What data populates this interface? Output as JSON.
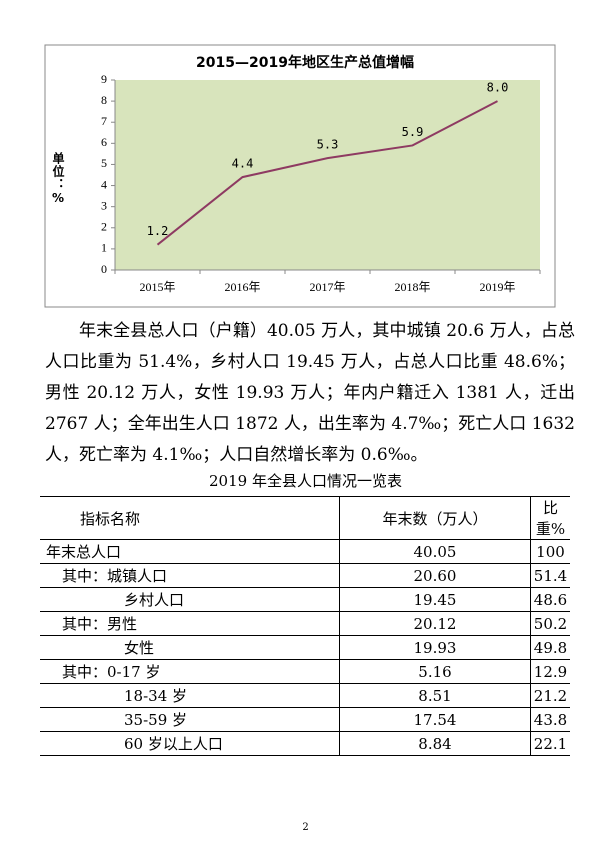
{
  "chart_data": {
    "type": "line",
    "title": "2015—2019年地区生产总值增幅",
    "y_label": "单位：%",
    "categories": [
      "2015年",
      "2016年",
      "2017年",
      "2018年",
      "2019年"
    ],
    "values": [
      1.2,
      4.4,
      5.3,
      5.9,
      8.0
    ],
    "value_labels": [
      "1.2",
      "4.4",
      "5.3",
      "5.9",
      "8.0"
    ],
    "color": "#8e3a62",
    "background": "#d8e4bc",
    "ylim": [
      0,
      9
    ],
    "yticks": [
      0,
      1,
      2,
      3,
      4,
      5,
      6,
      7,
      8,
      9
    ],
    "grid": false
  },
  "paragraph": "年末全县总人口（户籍）40.05 万人，其中城镇 20.6 万人，占总人口比重为 51.4%，乡村人口 19.45 万人，占总人口比重 48.6%；男性 20.12 万人，女性 19.93 万人；年内户籍迁入 1381 人，迁出 2767 人；全年出生人口 1872 人，出生率为 4.7‰；死亡人口 1632 人，死亡率为 4.1‰；人口自然增长率为 0.6‰。",
  "table": {
    "caption": "2019 年全县人口情况一览表",
    "header": [
      "指标名称",
      "年末数（万人）",
      "比重%"
    ],
    "rows": [
      [
        "年末总人口",
        "40.05",
        "100"
      ],
      [
        "其中：城镇人口",
        "20.60",
        "51.4"
      ],
      [
        "乡村人口",
        "19.45",
        "48.6"
      ],
      [
        "其中：男性",
        "20.12",
        "50.2"
      ],
      [
        "女性",
        "19.93",
        "49.8"
      ],
      [
        "其中：0-17 岁",
        "5.16",
        "12.9"
      ],
      [
        "18-34 岁",
        "8.51",
        "21.2"
      ],
      [
        "35-59 岁",
        "17.54",
        "43.8"
      ],
      [
        "60 岁以上人口",
        "8.84",
        "22.1"
      ]
    ]
  },
  "page_number": "2"
}
